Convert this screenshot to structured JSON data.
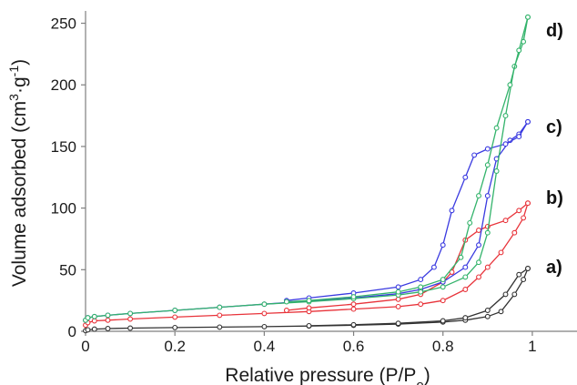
{
  "chart_data": {
    "type": "line",
    "title": "",
    "xlabel": "Relative pressure (P/P",
    "xlabel_sub": "o",
    "xlabel_end": ")",
    "ylabel": "Volume adsorbed (cm",
    "ylabel_sup1": "3",
    "ylabel_mid": "·g",
    "ylabel_sup2": "-1",
    "ylabel_end": ")",
    "xlim": [
      0,
      1.1
    ],
    "ylim": [
      0,
      260
    ],
    "x_ticks": [
      0,
      0.2,
      0.4,
      0.6,
      0.8,
      1
    ],
    "x_tick_labels": [
      "0",
      "0.2",
      "0.4",
      "0.6",
      "0.8",
      "1"
    ],
    "y_ticks": [
      0,
      50,
      100,
      150,
      200,
      250
    ],
    "y_tick_labels": [
      "0",
      "50",
      "100",
      "150",
      "200",
      "250"
    ],
    "grid": false,
    "series": [
      {
        "label": "a)",
        "color": "#333333",
        "adsorption": [
          [
            0.0,
            0.5
          ],
          [
            0.005,
            1.2
          ],
          [
            0.02,
            1.8
          ],
          [
            0.05,
            2.2
          ],
          [
            0.1,
            2.6
          ],
          [
            0.2,
            3.0
          ],
          [
            0.3,
            3.4
          ],
          [
            0.4,
            3.8
          ],
          [
            0.5,
            4.3
          ],
          [
            0.6,
            4.9
          ],
          [
            0.7,
            5.8
          ],
          [
            0.8,
            7.5
          ],
          [
            0.85,
            9.0
          ],
          [
            0.9,
            12.0
          ],
          [
            0.93,
            16.0
          ],
          [
            0.96,
            30.0
          ],
          [
            0.98,
            42.0
          ],
          [
            0.99,
            51.0
          ]
        ],
        "desorption": [
          [
            0.99,
            51.0
          ],
          [
            0.97,
            46.0
          ],
          [
            0.94,
            30.0
          ],
          [
            0.9,
            17.0
          ],
          [
            0.85,
            11.0
          ],
          [
            0.8,
            8.5
          ],
          [
            0.7,
            6.5
          ],
          [
            0.6,
            5.3
          ],
          [
            0.5,
            4.5
          ]
        ]
      },
      {
        "label": "b)",
        "color": "#e8333a",
        "adsorption": [
          [
            0.0,
            5.0
          ],
          [
            0.005,
            7.0
          ],
          [
            0.02,
            8.5
          ],
          [
            0.05,
            9.0
          ],
          [
            0.1,
            10.0
          ],
          [
            0.2,
            11.5
          ],
          [
            0.3,
            13.0
          ],
          [
            0.4,
            14.5
          ],
          [
            0.5,
            16.0
          ],
          [
            0.6,
            18.0
          ],
          [
            0.7,
            20.0
          ],
          [
            0.75,
            22.0
          ],
          [
            0.8,
            25.0
          ],
          [
            0.85,
            34.0
          ],
          [
            0.88,
            44.0
          ],
          [
            0.9,
            52.0
          ],
          [
            0.93,
            64.0
          ],
          [
            0.96,
            80.0
          ],
          [
            0.98,
            92.0
          ],
          [
            0.99,
            104.0
          ]
        ],
        "desorption": [
          [
            0.99,
            104.0
          ],
          [
            0.97,
            98.0
          ],
          [
            0.94,
            90.0
          ],
          [
            0.9,
            85.0
          ],
          [
            0.88,
            82.0
          ],
          [
            0.85,
            74.0
          ],
          [
            0.82,
            48.0
          ],
          [
            0.8,
            40.0
          ],
          [
            0.75,
            30.0
          ],
          [
            0.7,
            26.0
          ],
          [
            0.6,
            22.0
          ],
          [
            0.5,
            19.0
          ],
          [
            0.45,
            17.0
          ]
        ]
      },
      {
        "label": "c)",
        "color": "#3a3ae0",
        "adsorption": [
          [
            0.0,
            9.0
          ],
          [
            0.005,
            11.0
          ],
          [
            0.02,
            12.0
          ],
          [
            0.05,
            13.0
          ],
          [
            0.1,
            14.5
          ],
          [
            0.2,
            17.0
          ],
          [
            0.3,
            19.5
          ],
          [
            0.4,
            22.0
          ],
          [
            0.5,
            24.5
          ],
          [
            0.6,
            27.0
          ],
          [
            0.7,
            30.5
          ],
          [
            0.75,
            34.0
          ],
          [
            0.8,
            40.0
          ],
          [
            0.85,
            52.0
          ],
          [
            0.88,
            70.0
          ],
          [
            0.9,
            110.0
          ],
          [
            0.92,
            140.0
          ],
          [
            0.95,
            155.0
          ],
          [
            0.97,
            160.0
          ],
          [
            0.99,
            170.0
          ]
        ],
        "desorption": [
          [
            0.99,
            170.0
          ],
          [
            0.97,
            158.0
          ],
          [
            0.94,
            152.0
          ],
          [
            0.9,
            148.0
          ],
          [
            0.87,
            143.0
          ],
          [
            0.85,
            125.0
          ],
          [
            0.82,
            98.0
          ],
          [
            0.8,
            70.0
          ],
          [
            0.78,
            52.0
          ],
          [
            0.75,
            42.0
          ],
          [
            0.7,
            36.0
          ],
          [
            0.6,
            31.0
          ],
          [
            0.5,
            27.0
          ],
          [
            0.45,
            25.0
          ]
        ]
      },
      {
        "label": "d)",
        "color": "#33b36b",
        "adsorption": [
          [
            0.0,
            9.0
          ],
          [
            0.005,
            11.0
          ],
          [
            0.02,
            12.0
          ],
          [
            0.05,
            13.0
          ],
          [
            0.1,
            14.5
          ],
          [
            0.2,
            17.0
          ],
          [
            0.3,
            19.5
          ],
          [
            0.4,
            22.0
          ],
          [
            0.5,
            24.0
          ],
          [
            0.6,
            26.5
          ],
          [
            0.7,
            29.5
          ],
          [
            0.75,
            32.0
          ],
          [
            0.8,
            36.0
          ],
          [
            0.85,
            44.0
          ],
          [
            0.88,
            56.0
          ],
          [
            0.9,
            80.0
          ],
          [
            0.92,
            130.0
          ],
          [
            0.94,
            175.0
          ],
          [
            0.96,
            215.0
          ],
          [
            0.98,
            235.0
          ],
          [
            0.99,
            255.0
          ]
        ],
        "desorption": [
          [
            0.99,
            255.0
          ],
          [
            0.97,
            228.0
          ],
          [
            0.95,
            200.0
          ],
          [
            0.92,
            165.0
          ],
          [
            0.9,
            135.0
          ],
          [
            0.88,
            110.0
          ],
          [
            0.86,
            88.0
          ],
          [
            0.84,
            60.0
          ],
          [
            0.8,
            42.0
          ],
          [
            0.75,
            36.0
          ],
          [
            0.7,
            32.0
          ],
          [
            0.6,
            28.0
          ],
          [
            0.5,
            25.0
          ],
          [
            0.45,
            24.0
          ]
        ]
      }
    ]
  }
}
